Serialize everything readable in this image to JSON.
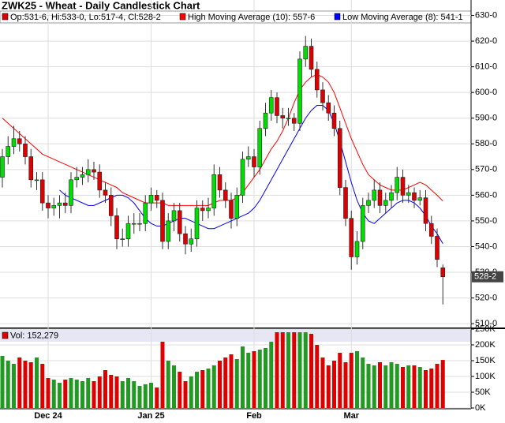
{
  "chart_data": {
    "type": "candlestick",
    "title": "ZWK25 - Wheat - Daily Candlestick Chart",
    "ohlc_label": "Op:531-6, Hi:533-0, Lo:517-4, Cl:528-2",
    "last_label": "528-2",
    "up_color": "#00dd00",
    "down_color": "#dd0000",
    "grid": true,
    "categories": [
      null,
      null,
      null,
      null,
      null,
      null,
      null,
      null,
      "Dec 24",
      null,
      null,
      null,
      null,
      null,
      null,
      null,
      null,
      null,
      null,
      null,
      null,
      null,
      null,
      null,
      null,
      null,
      "Jan 25",
      null,
      null,
      null,
      null,
      null,
      null,
      null,
      null,
      null,
      null,
      null,
      null,
      null,
      null,
      null,
      null,
      null,
      "Feb",
      null,
      null,
      null,
      null,
      null,
      null,
      null,
      null,
      null,
      null,
      null,
      null,
      null,
      null,
      null,
      null,
      "Mar",
      null,
      null,
      null,
      null,
      null,
      null,
      null,
      null,
      null,
      null,
      null,
      null,
      null,
      null,
      null,
      null
    ],
    "open": [
      567,
      575,
      579,
      582,
      580,
      575,
      566,
      566,
      557,
      555,
      556,
      557,
      556,
      566,
      567,
      568,
      570,
      569,
      562,
      560,
      552,
      543,
      543,
      549,
      549,
      549,
      557,
      560,
      558,
      542,
      550,
      554,
      545,
      541,
      543,
      555,
      554,
      555,
      568,
      562,
      558,
      551,
      560,
      574,
      575,
      571,
      586,
      592,
      598,
      591,
      590,
      590,
      588,
      613,
      618,
      609,
      601,
      596,
      592,
      586,
      563,
      551,
      536,
      542,
      556,
      558,
      562,
      556,
      558,
      561,
      567,
      560,
      561,
      558,
      559,
      549,
      544,
      531.75
    ],
    "high": [
      578,
      583,
      587,
      585,
      583,
      578,
      569,
      569,
      560,
      559,
      560,
      561,
      569,
      571,
      571,
      574,
      573,
      572,
      565,
      563,
      555,
      547,
      552,
      553,
      553,
      560,
      563,
      562,
      561,
      553,
      557,
      557,
      548,
      547,
      558,
      558,
      559,
      572,
      571,
      565,
      561,
      563,
      577,
      579,
      578,
      589,
      596,
      601,
      600,
      594,
      594,
      592,
      616,
      622,
      621,
      612,
      604,
      599,
      595,
      589,
      566,
      554,
      546,
      559,
      561,
      566,
      565,
      561,
      564,
      571,
      570,
      564,
      563,
      562,
      562,
      552,
      547,
      533
    ],
    "low": [
      563,
      572,
      576,
      577,
      572,
      563,
      562,
      554,
      551,
      552,
      551,
      553,
      553,
      563,
      564,
      565,
      566,
      559,
      557,
      548,
      539,
      540,
      540,
      545,
      546,
      546,
      554,
      555,
      539,
      539,
      546,
      542,
      537,
      538,
      540,
      550,
      551,
      552,
      559,
      555,
      547,
      548,
      557,
      571,
      567,
      568,
      583,
      589,
      588,
      586,
      587,
      585,
      585,
      610,
      606,
      598,
      593,
      589,
      583,
      560,
      548,
      531,
      533,
      539,
      553,
      555,
      553,
      553,
      555,
      558,
      557,
      557,
      555,
      556,
      546,
      541,
      532,
      517.5
    ],
    "close": [
      575,
      579,
      582,
      580,
      575,
      566,
      566,
      557,
      555,
      556,
      557,
      556,
      566,
      567,
      568,
      570,
      569,
      562,
      560,
      552,
      543,
      543,
      549,
      549,
      549,
      557,
      560,
      558,
      542,
      550,
      554,
      545,
      541,
      543,
      555,
      554,
      555,
      568,
      562,
      558,
      551,
      560,
      574,
      575,
      571,
      586,
      592,
      598,
      591,
      590,
      590,
      588,
      613,
      618,
      609,
      601,
      596,
      592,
      586,
      563,
      551,
      536,
      542,
      556,
      558,
      562,
      556,
      558,
      561,
      567,
      560,
      561,
      558,
      559,
      549,
      544,
      535,
      528.25
    ],
    "series": [
      {
        "name": "High Moving Average (10): 557-6",
        "color": "#ff0000",
        "values": [
          590,
          588,
          586,
          584,
          582,
          580,
          578,
          576,
          575,
          574,
          573,
          572,
          571,
          570,
          569,
          568,
          567,
          566,
          565,
          564,
          563,
          561,
          560,
          559,
          558,
          557,
          557,
          557,
          557,
          556,
          556,
          556,
          556,
          556,
          556,
          556,
          556,
          557,
          558,
          558,
          558,
          559,
          561,
          564,
          567,
          570,
          574,
          578,
          581,
          585,
          590,
          596,
          601,
          604,
          606,
          607,
          606,
          604,
          600,
          594,
          588,
          582,
          577,
          572,
          568,
          566,
          564,
          563,
          562,
          562,
          562,
          563,
          564,
          565,
          564,
          562,
          560,
          557.75
        ]
      },
      {
        "name": "Low Moving Average (8): 541-1",
        "color": "#0000ff",
        "values": [
          null,
          null,
          null,
          null,
          null,
          null,
          null,
          null,
          null,
          null,
          562,
          560,
          559,
          558,
          557,
          556,
          556,
          557,
          558,
          559,
          560,
          560,
          559,
          557,
          554,
          551,
          549,
          548,
          548,
          549,
          550,
          551,
          551,
          550,
          549,
          548,
          547,
          547,
          548,
          549,
          550,
          551,
          552,
          553,
          555,
          558,
          562,
          566,
          570,
          574,
          578,
          582,
          586,
          590,
          593,
          595,
          595,
          593,
          588,
          581,
          573,
          565,
          558,
          553,
          550,
          549,
          551,
          553,
          555,
          557,
          558,
          558,
          557,
          555,
          552,
          548,
          545,
          541.125
        ]
      }
    ],
    "ylim": [
      508.5,
      636
    ],
    "yticks": [
      {
        "value": 510,
        "label": "510-0"
      },
      {
        "value": 520,
        "label": "520-0"
      },
      {
        "value": 530,
        "label": "530-0"
      },
      {
        "value": 540,
        "label": "540-0"
      },
      {
        "value": 550,
        "label": "550-0"
      },
      {
        "value": 560,
        "label": "560-0"
      },
      {
        "value": 570,
        "label": "570-0"
      },
      {
        "value": 580,
        "label": "580-0"
      },
      {
        "value": 590,
        "label": "590-0"
      },
      {
        "value": 600,
        "label": "600-0"
      },
      {
        "value": 610,
        "label": "610-0"
      },
      {
        "value": 620,
        "label": "620-0"
      },
      {
        "value": 630,
        "label": "630-0"
      }
    ],
    "volume": {
      "label": "Vol: 152,279",
      "values": [
        165000,
        150000,
        140000,
        160000,
        150000,
        145000,
        160000,
        140000,
        95000,
        90000,
        80000,
        90000,
        95000,
        90000,
        85000,
        95000,
        85000,
        100000,
        120000,
        105000,
        100000,
        85000,
        95000,
        85000,
        70000,
        75000,
        80000,
        65000,
        210000,
        150000,
        135000,
        115000,
        85000,
        100000,
        115000,
        120000,
        125000,
        135000,
        150000,
        160000,
        170000,
        155000,
        195000,
        175000,
        180000,
        185000,
        190000,
        210000,
        240000,
        240000,
        240000,
        240000,
        240000,
        240000,
        235000,
        200000,
        160000,
        135000,
        150000,
        175000,
        145000,
        175000,
        180000,
        160000,
        140000,
        135000,
        145000,
        135000,
        145000,
        140000,
        130000,
        135000,
        135000,
        130000,
        120000,
        125000,
        140000,
        152279
      ],
      "ylim": [
        0,
        250000
      ],
      "yticks": [
        {
          "value": 0,
          "label": "0K"
        },
        {
          "value": 50000,
          "label": "50K"
        },
        {
          "value": 100000,
          "label": "100K"
        },
        {
          "value": 150000,
          "label": "150K"
        },
        {
          "value": 200000,
          "label": "200K"
        },
        {
          "value": 250000,
          "label": "250K"
        }
      ]
    }
  }
}
